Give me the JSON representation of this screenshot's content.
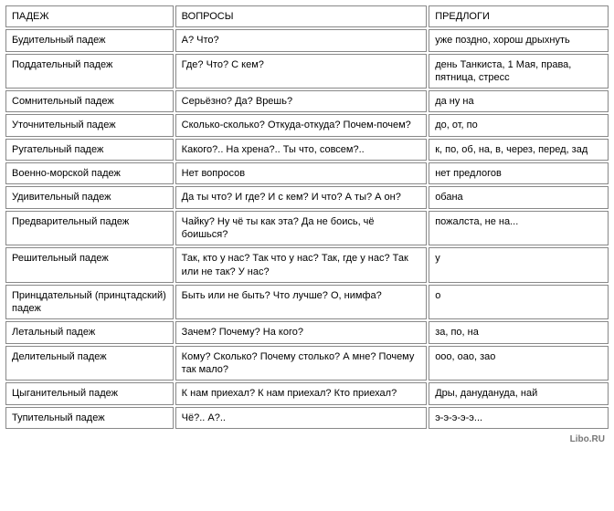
{
  "table": {
    "columns": [
      "ПАДЕЖ",
      "ВОПРОСЫ",
      "ПРЕДЛОГИ"
    ],
    "rows": [
      [
        "Будительный падеж",
        "А? Что?",
        "уже поздно, хорош дрыхнуть"
      ],
      [
        "Поддательный падеж",
        "Где? Что? С кем?",
        "день Танкиста, 1 Мая, права, пятница, стресс"
      ],
      [
        "Сомнительный падеж",
        "Серьёзно? Да? Врешь?",
        "да ну на"
      ],
      [
        "Уточнительный падеж",
        "Сколько-сколько? Откуда-откуда? Почем-почем?",
        "до, от, по"
      ],
      [
        "Ругательный падеж",
        "Какого?.. На хрена?.. Ты что, совсем?..",
        "к, по, об, на, в, через, перед, зад"
      ],
      [
        "Военно-морской падеж",
        "Нет вопросов",
        "нет предлогов"
      ],
      [
        "Удивительный падеж",
        "Да ты что? И где? И с кем? И что? А ты? А он?",
        "обана"
      ],
      [
        "Предварительный падеж",
        "Чайку? Ну чё ты как эта? Да не боись, чё боишься?",
        "пожалста, не на..."
      ],
      [
        "Решительный падеж",
        "Так, кто у нас? Так что у нас? Так, где у нас? Так или не так? У нас?",
        "у"
      ],
      [
        "Принцдательный (принцтадский) падеж",
        "Быть или не быть? Что лучше? О, нимфа?",
        "о"
      ],
      [
        "Летальный падеж",
        "Зачем? Почему? На кого?",
        "за, по, на"
      ],
      [
        "Делительный падеж",
        "Кому? Сколько? Почему столько? А мне? Почему так мало?",
        "ооо, оао, зао"
      ],
      [
        "Цыганительный падеж",
        "К нам приехал? К нам приехал? Кто приехал?",
        "Дры, данудануда, най"
      ],
      [
        "Тупительный падеж",
        "Чё?.. А?..",
        "э-э-э-э-э..."
      ]
    ],
    "border_color": "#888888",
    "background_color": "#ffffff",
    "font_size": 11,
    "col_widths_pct": [
      28,
      42,
      30
    ]
  },
  "footer": {
    "text": "Libo.RU"
  }
}
